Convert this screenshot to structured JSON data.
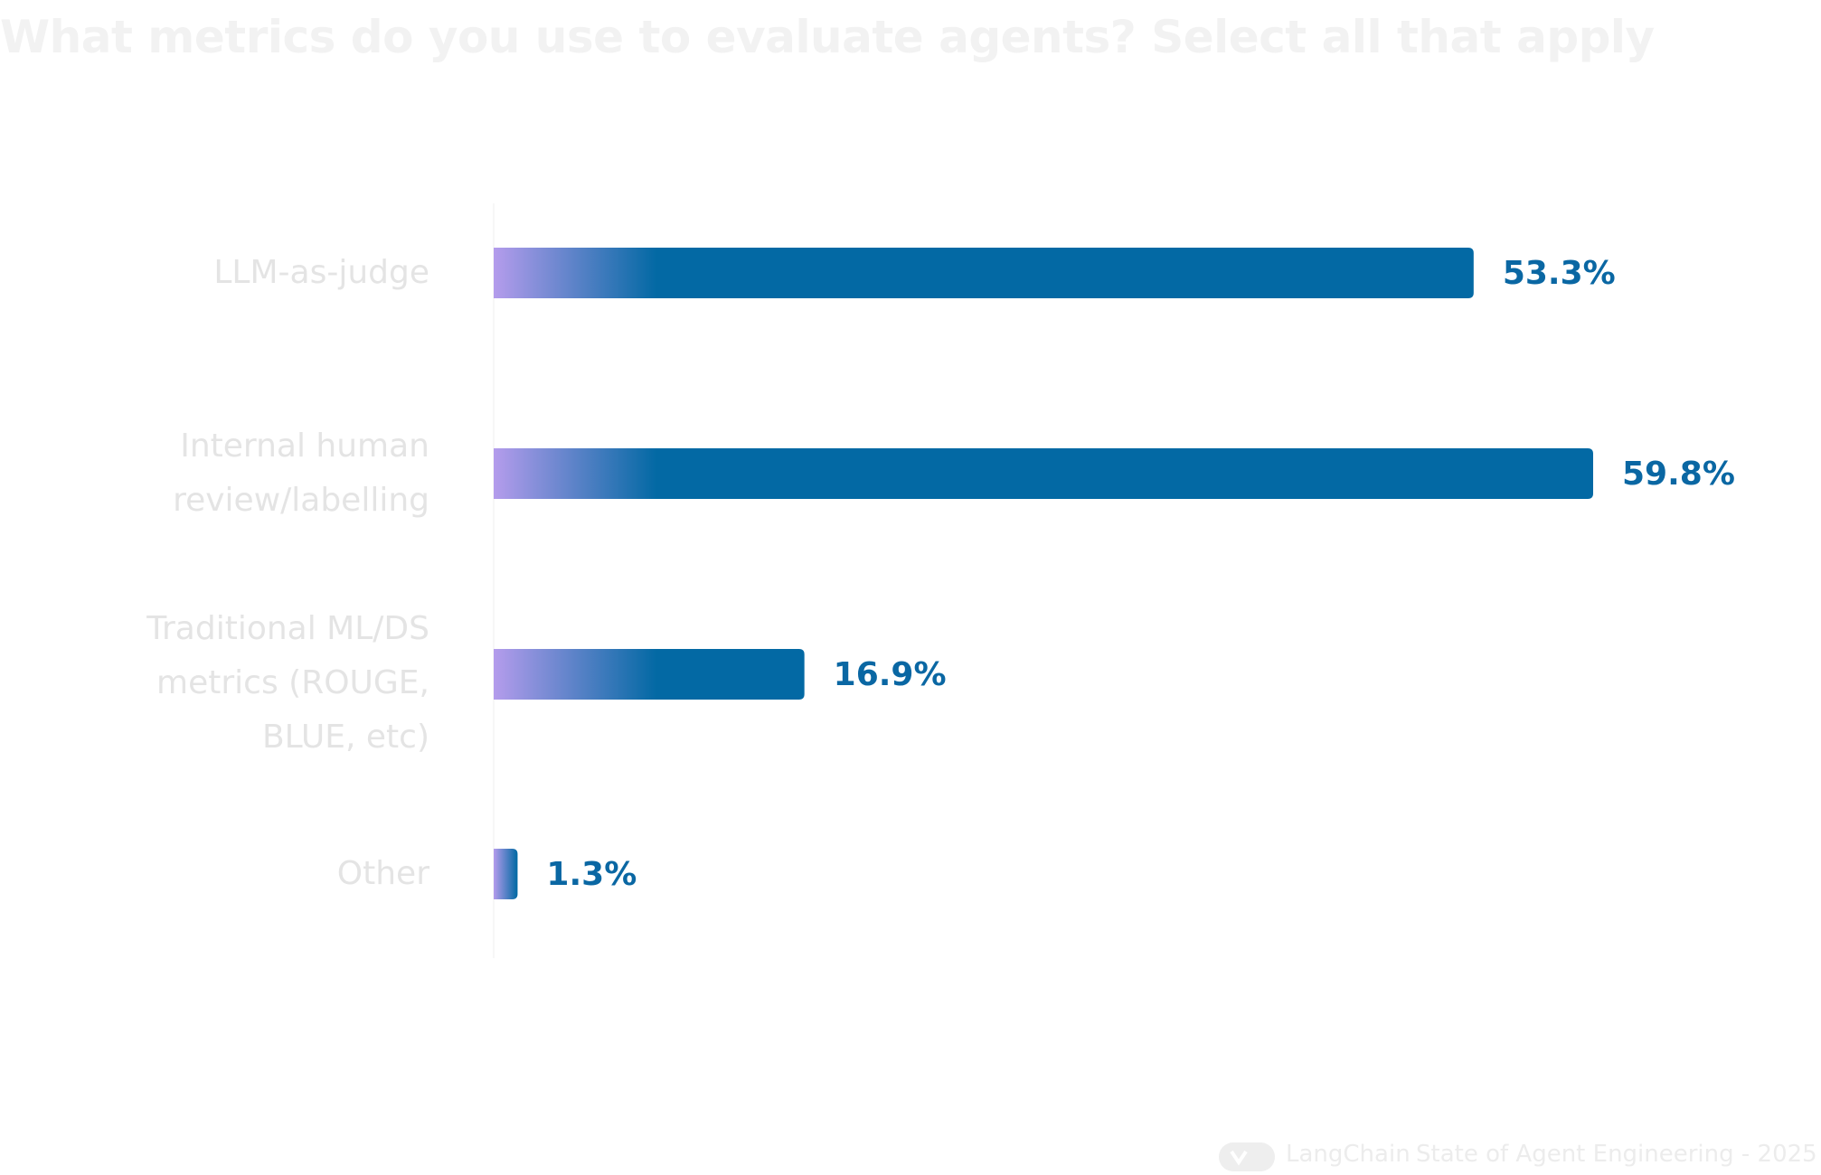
{
  "chart_data": {
    "type": "bar",
    "orientation": "horizontal",
    "title": "What metrics do you use to evaluate agents? Select all that apply",
    "categories": [
      "LLM-as-judge",
      "Internal human review/labelling",
      "Traditional ML/DS metrics (ROUGE, BLUE, etc)",
      "Other"
    ],
    "values": [
      53.3,
      59.8,
      16.9,
      1.3
    ],
    "value_labels": [
      "53.3%",
      "59.8%",
      "16.9%",
      "1.3%"
    ],
    "color": "#0369a4",
    "gradient_start_color": "#b49cec",
    "footer": {
      "brand": "LangChain",
      "source": "State of Agent Engineering - 2025"
    }
  }
}
